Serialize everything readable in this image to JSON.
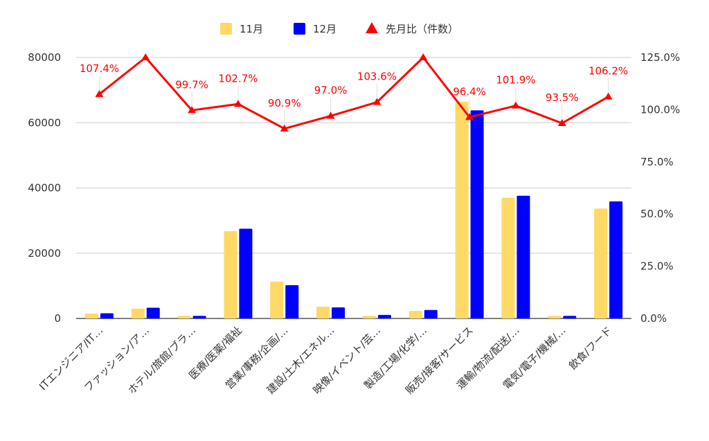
{
  "chart_data": {
    "type": "bar",
    "title": "",
    "legend_position": "top-center",
    "categories": [
      "ITエンジニア/IT…",
      "ファッション/ア…",
      "ホテル/旅館/ブラ…",
      "医療/医薬/福祉",
      "営業/事務/企画/…",
      "建設/土木/エネル…",
      "映像/イベント/芸…",
      "製造/工場/化学/…",
      "販売/接客/サービス",
      "運輸/物流/配送/…",
      "電気/電子/機械/…",
      "飲食/フード"
    ],
    "series": [
      {
        "name": "11月",
        "type": "bar",
        "color": "#ffd966",
        "axis": "left",
        "values": [
          1500,
          3000,
          800,
          26800,
          11300,
          3600,
          800,
          2300,
          66400,
          37000,
          800,
          33700
        ]
      },
      {
        "name": "12月",
        "type": "bar",
        "color": "#0000ff",
        "axis": "left",
        "values": [
          1600,
          3300,
          800,
          27500,
          10200,
          3400,
          1100,
          2600,
          63800,
          37600,
          800,
          35900
        ]
      },
      {
        "name": "先月比（件数）",
        "type": "line",
        "color": "#ff0000",
        "axis": "right",
        "marker": "triangle",
        "values": [
          107.4,
          125.0,
          99.7,
          102.7,
          90.9,
          97.0,
          103.6,
          125.0,
          96.4,
          101.9,
          93.5,
          106.2
        ],
        "labels": [
          "107.4%",
          "",
          "99.7%",
          "102.7%",
          "90.9%",
          "97.0%",
          "103.6%",
          "",
          "96.4%",
          "101.9%",
          "93.5%",
          "106.2%"
        ]
      }
    ],
    "y_left": {
      "min": 0,
      "max": 80000,
      "ticks": [
        "0",
        "20000",
        "40000",
        "60000",
        "80000"
      ],
      "tick_values": [
        0,
        20000,
        40000,
        60000,
        80000
      ]
    },
    "y_right": {
      "min": 0,
      "max": 125,
      "ticks": [
        "0.0%",
        "25.0%",
        "50.0%",
        "75.0%",
        "100.0%",
        "125.0%"
      ],
      "tick_values": [
        0,
        25,
        50,
        75,
        100,
        125
      ]
    },
    "grid": true,
    "colors": {
      "grid": "#cccccc",
      "axis": "#333333",
      "text": "#333333"
    }
  }
}
